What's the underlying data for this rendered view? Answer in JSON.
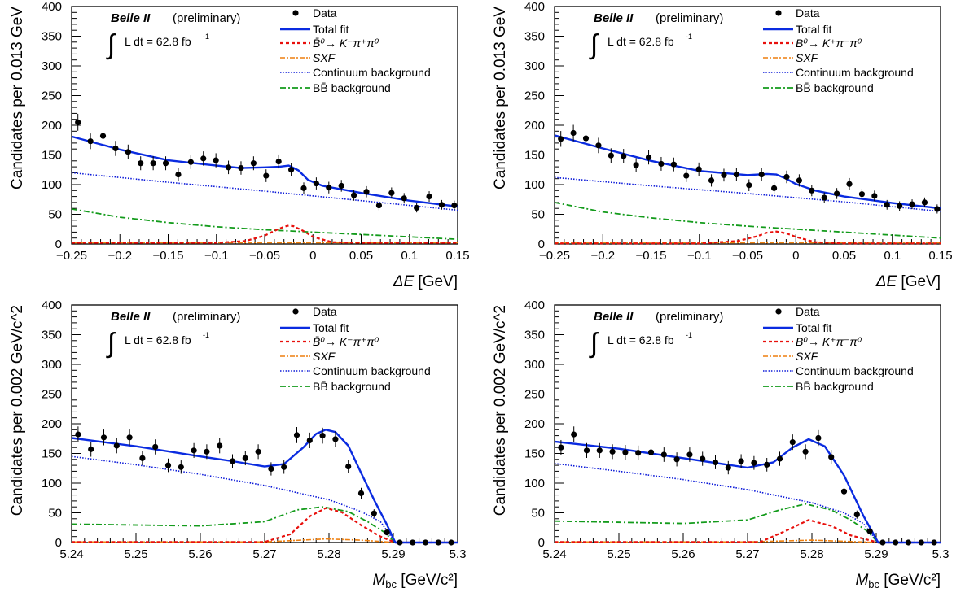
{
  "colors": {
    "data": "#000000",
    "total_fit": "#0a2be0",
    "signal": "#e8100c",
    "sxf": "#ee7f0e",
    "continuum": "#0a18d8",
    "bbbar": "#139b1b"
  },
  "chart_data": [
    {
      "type": "scatter",
      "experiment": "Belle II",
      "status": "(preliminary)",
      "lumi": "L dt = 62.8 fb",
      "lumi_exp": "-1",
      "ylabel": "Candidates per 0.013 GeV",
      "xlabel_sym": "ΔE",
      "xlabel_unit": " [GeV]",
      "xlim": [
        -0.25,
        0.15
      ],
      "ylim": [
        0,
        400
      ],
      "xticks": [
        -0.25,
        -0.2,
        -0.15,
        -0.1,
        -0.05,
        0,
        0.05,
        0.1,
        0.15
      ],
      "xtick_labels": [
        "−0.25",
        "−0.2",
        "−0.15",
        "−0.1",
        "−0.05",
        "0",
        "0.05",
        "0.1",
        "0.15"
      ],
      "yticks": [
        0,
        50,
        100,
        150,
        200,
        250,
        300,
        350,
        400
      ],
      "ytick_labels": [
        "0",
        "50",
        "100",
        "150",
        "200",
        "250",
        "300",
        "350",
        "400"
      ],
      "legend": {
        "data": "Data",
        "total": "Total fit",
        "signal": "B̄⁰→ K⁻π⁺π⁰",
        "sxf": "SXF",
        "continuum": "Continuum background",
        "bbbar": "BB̄ background"
      },
      "series": [
        {
          "name": "Data",
          "x": [
            -0.2435,
            -0.2305,
            -0.2175,
            -0.2045,
            -0.1915,
            -0.1785,
            -0.1655,
            -0.1525,
            -0.1395,
            -0.1265,
            -0.1135,
            -0.1005,
            -0.0875,
            -0.0745,
            -0.0615,
            -0.0485,
            -0.0355,
            -0.0225,
            -0.0095,
            0.0035,
            0.0165,
            0.0295,
            0.0425,
            0.0555,
            0.0685,
            0.0815,
            0.0945,
            0.1075,
            0.1205,
            0.1335,
            0.1465
          ],
          "y": [
            205,
            173,
            182,
            161,
            155,
            136,
            136,
            136,
            117,
            138,
            144,
            141,
            129,
            128,
            136,
            115,
            139,
            125,
            94,
            102,
            95,
            98,
            82,
            88,
            65,
            86,
            77,
            61,
            80,
            66,
            65
          ]
        },
        {
          "name": "Total fit",
          "x": [
            -0.25,
            -0.2,
            -0.15,
            -0.1,
            -0.075,
            -0.05,
            -0.035,
            -0.025,
            -0.015,
            -0.005,
            0.01,
            0.05,
            0.1,
            0.15
          ],
          "y": [
            181,
            159,
            141,
            132,
            128,
            129,
            130,
            132,
            124,
            108,
            98,
            86,
            73,
            63
          ]
        },
        {
          "name": "B̄⁰→ K⁻π⁺π⁰",
          "x": [
            -0.25,
            -0.1,
            -0.07,
            -0.05,
            -0.04,
            -0.03,
            -0.025,
            -0.02,
            -0.01,
            0,
            0.02,
            0.05,
            0.15
          ],
          "y": [
            2,
            2,
            5,
            14,
            22,
            29,
            31,
            30,
            22,
            12,
            3,
            2,
            2
          ]
        },
        {
          "name": "SXF",
          "x": [
            -0.25,
            0.15
          ],
          "y": [
            2,
            2
          ]
        },
        {
          "name": "Continuum background",
          "x": [
            -0.25,
            -0.15,
            -0.05,
            0.05,
            0.15
          ],
          "y": [
            120,
            104,
            89,
            73,
            57
          ]
        },
        {
          "name": "BB̄ background",
          "x": [
            -0.25,
            -0.2,
            -0.15,
            -0.1,
            -0.05,
            0,
            0.05,
            0.1,
            0.15
          ],
          "y": [
            59,
            45,
            36,
            29,
            24,
            20,
            16,
            12,
            8
          ]
        }
      ]
    },
    {
      "type": "scatter",
      "experiment": "Belle II",
      "status": "(preliminary)",
      "lumi": "L dt = 62.8 fb",
      "lumi_exp": "-1",
      "ylabel": "Candidates per 0.013 GeV",
      "xlabel_sym": "ΔE",
      "xlabel_unit": " [GeV]",
      "xlim": [
        -0.25,
        0.15
      ],
      "ylim": [
        0,
        400
      ],
      "xticks": [
        -0.25,
        -0.2,
        -0.15,
        -0.1,
        -0.05,
        0,
        0.05,
        0.1,
        0.15
      ],
      "xtick_labels": [
        "−0.25",
        "−0.2",
        "−0.15",
        "−0.1",
        "−0.05",
        "0",
        "0.05",
        "0.1",
        "0.15"
      ],
      "yticks": [
        0,
        50,
        100,
        150,
        200,
        250,
        300,
        350,
        400
      ],
      "ytick_labels": [
        "0",
        "50",
        "100",
        "150",
        "200",
        "250",
        "300",
        "350",
        "400"
      ],
      "legend": {
        "data": "Data",
        "total": "Total fit",
        "signal": "B⁰→ K⁺π⁻π⁰",
        "sxf": "SXF",
        "continuum": "Continuum background",
        "bbbar": "BB̄ background"
      },
      "series": [
        {
          "name": "Data",
          "x": [
            -0.2435,
            -0.2305,
            -0.2175,
            -0.2045,
            -0.1915,
            -0.1785,
            -0.1655,
            -0.1525,
            -0.1395,
            -0.1265,
            -0.1135,
            -0.1005,
            -0.0875,
            -0.0745,
            -0.0615,
            -0.0485,
            -0.0355,
            -0.0225,
            -0.0095,
            0.0035,
            0.0165,
            0.0295,
            0.0425,
            0.0555,
            0.0685,
            0.0815,
            0.0945,
            0.1075,
            0.1205,
            0.1335,
            0.1465
          ],
          "y": [
            177,
            187,
            178,
            166,
            149,
            148,
            133,
            146,
            135,
            134,
            115,
            126,
            107,
            116,
            117,
            99,
            117,
            94,
            113,
            107,
            90,
            78,
            85,
            101,
            84,
            81,
            66,
            64,
            67,
            70,
            59
          ]
        },
        {
          "name": "Total fit",
          "x": [
            -0.25,
            -0.2,
            -0.15,
            -0.1,
            -0.05,
            -0.03,
            -0.02,
            -0.01,
            0,
            0.02,
            0.05,
            0.1,
            0.15
          ],
          "y": [
            183,
            161,
            140,
            123,
            116,
            118,
            117,
            110,
            101,
            90,
            80,
            69,
            60
          ]
        },
        {
          "name": "B⁰→ K⁺π⁻π⁰",
          "x": [
            -0.25,
            -0.1,
            -0.06,
            -0.04,
            -0.03,
            -0.02,
            -0.01,
            0,
            0.02,
            0.05,
            0.15
          ],
          "y": [
            1,
            1,
            5,
            13,
            19,
            21,
            18,
            12,
            3,
            1,
            1
          ]
        },
        {
          "name": "SXF",
          "x": [
            -0.25,
            0.15
          ],
          "y": [
            2,
            2
          ]
        },
        {
          "name": "Continuum background",
          "x": [
            -0.25,
            -0.15,
            -0.05,
            0.05,
            0.15
          ],
          "y": [
            112,
            98,
            85,
            71,
            55
          ]
        },
        {
          "name": "BB̄ background",
          "x": [
            -0.25,
            -0.2,
            -0.15,
            -0.1,
            -0.05,
            0,
            0.05,
            0.1,
            0.15
          ],
          "y": [
            70,
            54,
            44,
            36,
            30,
            25,
            20,
            15,
            10
          ]
        }
      ]
    },
    {
      "type": "scatter",
      "experiment": "Belle II",
      "status": "(preliminary)",
      "lumi": "L dt = 62.8 fb",
      "lumi_exp": "-1",
      "ylabel": "Candidates per 0.002 GeV/c^2",
      "xlabel_sym": "M",
      "xlabel_sub": "bc",
      "xlabel_unit": " [GeV/c²]",
      "xlim": [
        5.24,
        5.3
      ],
      "ylim": [
        0,
        400
      ],
      "xticks": [
        5.24,
        5.25,
        5.26,
        5.27,
        5.28,
        5.29,
        5.3
      ],
      "xtick_labels": [
        "5.24",
        "5.25",
        "5.26",
        "5.27",
        "5.28",
        "5.29",
        "5.3"
      ],
      "yticks": [
        0,
        50,
        100,
        150,
        200,
        250,
        300,
        350,
        400
      ],
      "ytick_labels": [
        "0",
        "50",
        "100",
        "150",
        "200",
        "250",
        "300",
        "350",
        "400"
      ],
      "legend": {
        "data": "Data",
        "total": "Total fit",
        "signal": "B̄⁰→ K⁻π⁺π⁰",
        "sxf": "SXF",
        "continuum": "Continuum background",
        "bbbar": "BB̄ background"
      },
      "series": [
        {
          "name": "Data",
          "x": [
            5.241,
            5.243,
            5.245,
            5.247,
            5.249,
            5.251,
            5.253,
            5.255,
            5.257,
            5.259,
            5.261,
            5.263,
            5.265,
            5.267,
            5.269,
            5.271,
            5.273,
            5.275,
            5.277,
            5.279,
            5.281,
            5.283,
            5.285,
            5.287,
            5.289,
            5.291,
            5.293,
            5.295,
            5.297,
            5.299
          ],
          "y": [
            182,
            157,
            177,
            163,
            177,
            142,
            161,
            130,
            127,
            155,
            153,
            163,
            137,
            142,
            153,
            124,
            127,
            181,
            172,
            180,
            174,
            128,
            83,
            49,
            17,
            0,
            0,
            0,
            0,
            0
          ]
        },
        {
          "name": "Total fit",
          "x": [
            5.24,
            5.25,
            5.26,
            5.265,
            5.27,
            5.273,
            5.276,
            5.278,
            5.2795,
            5.281,
            5.283,
            5.285,
            5.287,
            5.289,
            5.2903,
            5.3
          ],
          "y": [
            176,
            162,
            145,
            137,
            128,
            132,
            160,
            183,
            190,
            186,
            163,
            117,
            72,
            30,
            0,
            0
          ]
        },
        {
          "name": "B̄⁰→ K⁻π⁺π⁰",
          "x": [
            5.24,
            5.27,
            5.274,
            5.277,
            5.2795,
            5.282,
            5.285,
            5.288,
            5.2903,
            5.3
          ],
          "y": [
            1,
            1,
            14,
            44,
            58,
            51,
            29,
            10,
            0,
            0
          ]
        },
        {
          "name": "SXF",
          "x": [
            5.24,
            5.27,
            5.2795,
            5.285,
            5.2903,
            5.3
          ],
          "y": [
            1,
            1,
            6,
            4,
            0,
            0
          ]
        },
        {
          "name": "Continuum background",
          "x": [
            5.24,
            5.25,
            5.26,
            5.27,
            5.28,
            5.285,
            5.288,
            5.2903,
            5.3
          ],
          "y": [
            145,
            131,
            115,
            96,
            72,
            52,
            35,
            0,
            0
          ]
        },
        {
          "name": "BB̄ background",
          "x": [
            5.24,
            5.26,
            5.27,
            5.275,
            5.279,
            5.283,
            5.286,
            5.2885,
            5.2903,
            5.3
          ],
          "y": [
            31,
            28,
            35,
            55,
            60,
            52,
            35,
            18,
            0,
            0
          ]
        }
      ]
    },
    {
      "type": "scatter",
      "experiment": "Belle II",
      "status": "(preliminary)",
      "lumi": "L dt = 62.8 fb",
      "lumi_exp": "-1",
      "ylabel": "Candidates per 0.002 GeV/c^2",
      "xlabel_sym": "M",
      "xlabel_sub": "bc",
      "xlabel_unit": " [GeV/c²]",
      "xlim": [
        5.24,
        5.3
      ],
      "ylim": [
        0,
        400
      ],
      "xticks": [
        5.24,
        5.25,
        5.26,
        5.27,
        5.28,
        5.29,
        5.3
      ],
      "xtick_labels": [
        "5.24",
        "5.25",
        "5.26",
        "5.27",
        "5.28",
        "5.29",
        "5.3"
      ],
      "yticks": [
        0,
        50,
        100,
        150,
        200,
        250,
        300,
        350,
        400
      ],
      "ytick_labels": [
        "0",
        "50",
        "100",
        "150",
        "200",
        "250",
        "300",
        "350",
        "400"
      ],
      "legend": {
        "data": "Data",
        "total": "Total fit",
        "signal": "B⁰→ K⁺π⁻π⁰",
        "sxf": "SXF",
        "continuum": "Continuum background",
        "bbbar": "BB̄ background"
      },
      "series": [
        {
          "name": "Data",
          "x": [
            5.241,
            5.243,
            5.245,
            5.247,
            5.249,
            5.251,
            5.253,
            5.255,
            5.257,
            5.259,
            5.261,
            5.263,
            5.265,
            5.267,
            5.269,
            5.271,
            5.273,
            5.275,
            5.277,
            5.279,
            5.281,
            5.283,
            5.285,
            5.287,
            5.289,
            5.291,
            5.293,
            5.295,
            5.297,
            5.299
          ],
          "y": [
            160,
            182,
            155,
            155,
            153,
            152,
            151,
            152,
            148,
            140,
            148,
            141,
            135,
            126,
            137,
            134,
            131,
            141,
            169,
            153,
            176,
            144,
            86,
            47,
            19,
            0,
            0,
            0,
            0,
            0
          ]
        },
        {
          "name": "Total fit",
          "x": [
            5.24,
            5.25,
            5.26,
            5.27,
            5.274,
            5.277,
            5.2795,
            5.282,
            5.285,
            5.288,
            5.2903,
            5.3
          ],
          "y": [
            170,
            158,
            142,
            126,
            135,
            160,
            174,
            162,
            113,
            45,
            0,
            0
          ]
        },
        {
          "name": "B⁰→ K⁺π⁻π⁰",
          "x": [
            5.24,
            5.272,
            5.276,
            5.2795,
            5.283,
            5.286,
            5.2903,
            5.3
          ],
          "y": [
            1,
            1,
            20,
            38,
            28,
            12,
            0,
            0
          ]
        },
        {
          "name": "SXF",
          "x": [
            5.24,
            5.27,
            5.28,
            5.2903,
            5.3
          ],
          "y": [
            1,
            1,
            4,
            0,
            0
          ]
        },
        {
          "name": "Continuum background",
          "x": [
            5.24,
            5.25,
            5.26,
            5.27,
            5.28,
            5.285,
            5.288,
            5.2903,
            5.3
          ],
          "y": [
            133,
            120,
            106,
            89,
            67,
            50,
            32,
            0,
            0
          ]
        },
        {
          "name": "BB̄ background",
          "x": [
            5.24,
            5.26,
            5.27,
            5.275,
            5.279,
            5.283,
            5.286,
            5.2885,
            5.2903,
            5.3
          ],
          "y": [
            36,
            32,
            38,
            55,
            65,
            55,
            38,
            20,
            0,
            0
          ]
        }
      ]
    }
  ]
}
